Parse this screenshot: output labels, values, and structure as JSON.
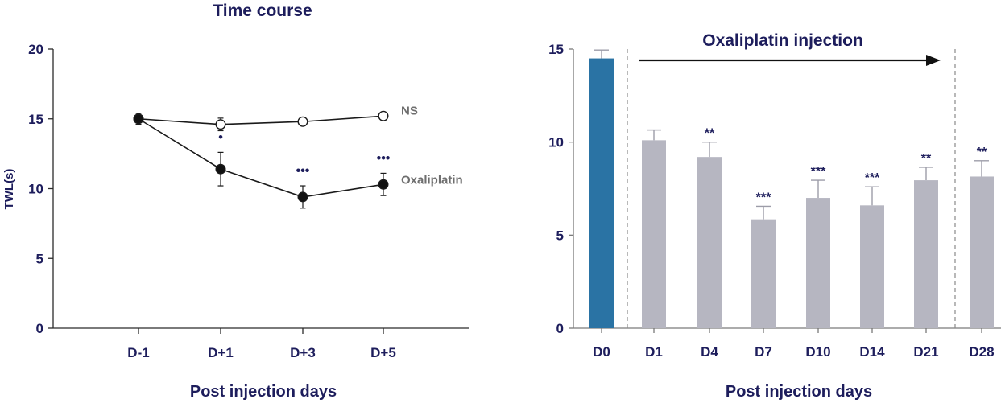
{
  "chart_data": [
    {
      "type": "line",
      "title": "Time course",
      "xlabel": "Post injection days",
      "ylabel": "TWL(s)",
      "categories": [
        "D-1",
        "D+1",
        "D+3",
        "D+5"
      ],
      "ylim": [
        0,
        20
      ],
      "yticks": [
        "0",
        "5",
        "10",
        "15",
        "20"
      ],
      "series": [
        {
          "name": "NS",
          "marker": "open-circle",
          "values": [
            15.0,
            14.6,
            14.8,
            15.2
          ],
          "errors": [
            0.4,
            0.45,
            0.15,
            0.1
          ],
          "significance": [
            "",
            "",
            "",
            ""
          ]
        },
        {
          "name": "Oxaliplatin",
          "marker": "filled-circle",
          "values": [
            15.0,
            11.4,
            9.4,
            10.3
          ],
          "errors": [
            0.4,
            1.2,
            0.8,
            0.8
          ],
          "significance": [
            "",
            "•",
            "•••",
            "•••"
          ]
        }
      ]
    },
    {
      "type": "bar",
      "title": "",
      "annotation": "Oxaliplatin injection",
      "xlabel": "Post injection days",
      "ylabel": "",
      "categories": [
        "D0",
        "D1",
        "D4",
        "D7",
        "D10",
        "D14",
        "D21",
        "D28"
      ],
      "values": [
        14.5,
        10.1,
        9.2,
        5.85,
        7.0,
        6.6,
        7.95,
        8.15
      ],
      "errors": [
        0.45,
        0.55,
        0.8,
        0.7,
        0.95,
        1.0,
        0.7,
        0.85
      ],
      "significance": [
        "",
        "",
        "**",
        "***",
        "***",
        "***",
        "**",
        "**"
      ],
      "ylim": [
        0,
        15
      ],
      "yticks": [
        "0",
        "5",
        "10",
        "15"
      ],
      "colors": {
        "baseline": "#2a73a4",
        "treated": "#b6b6c1"
      }
    }
  ]
}
